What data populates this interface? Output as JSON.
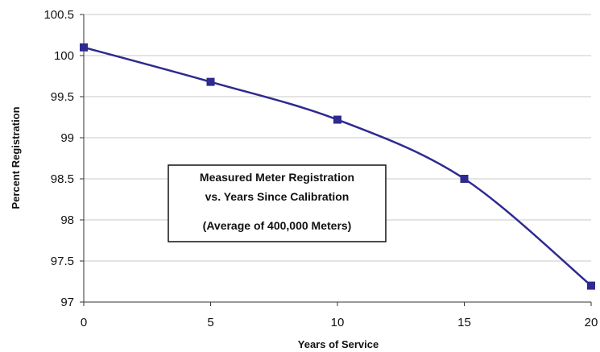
{
  "chart_data": {
    "type": "line",
    "x": [
      0,
      5,
      10,
      15,
      20
    ],
    "series": [
      {
        "values": [
          100.1,
          99.68,
          99.22,
          98.5,
          97.2
        ],
        "color": "#2e2a8f",
        "marker": "square"
      }
    ],
    "xlabel": "Years of Service",
    "ylabel": "Percent Registration",
    "xlim": [
      0,
      20
    ],
    "ylim": [
      97,
      100.5
    ],
    "xticks": [
      0,
      5,
      10,
      15,
      20
    ],
    "xtick_labels": [
      "0",
      "5",
      "10",
      "15",
      "20"
    ],
    "yticks": [
      97,
      97.5,
      98,
      98.5,
      99,
      99.5,
      100,
      100.5
    ],
    "ytick_labels": [
      "97",
      "97.5",
      "98",
      "98.5",
      "99",
      "99.5",
      "100",
      "100.5"
    ],
    "grid": "horizontal",
    "smooth": true,
    "annotation": {
      "lines": [
        "Measured Meter Registration",
        "vs. Years Since Calibration",
        "(Average of 400,000 Meters)"
      ]
    }
  }
}
